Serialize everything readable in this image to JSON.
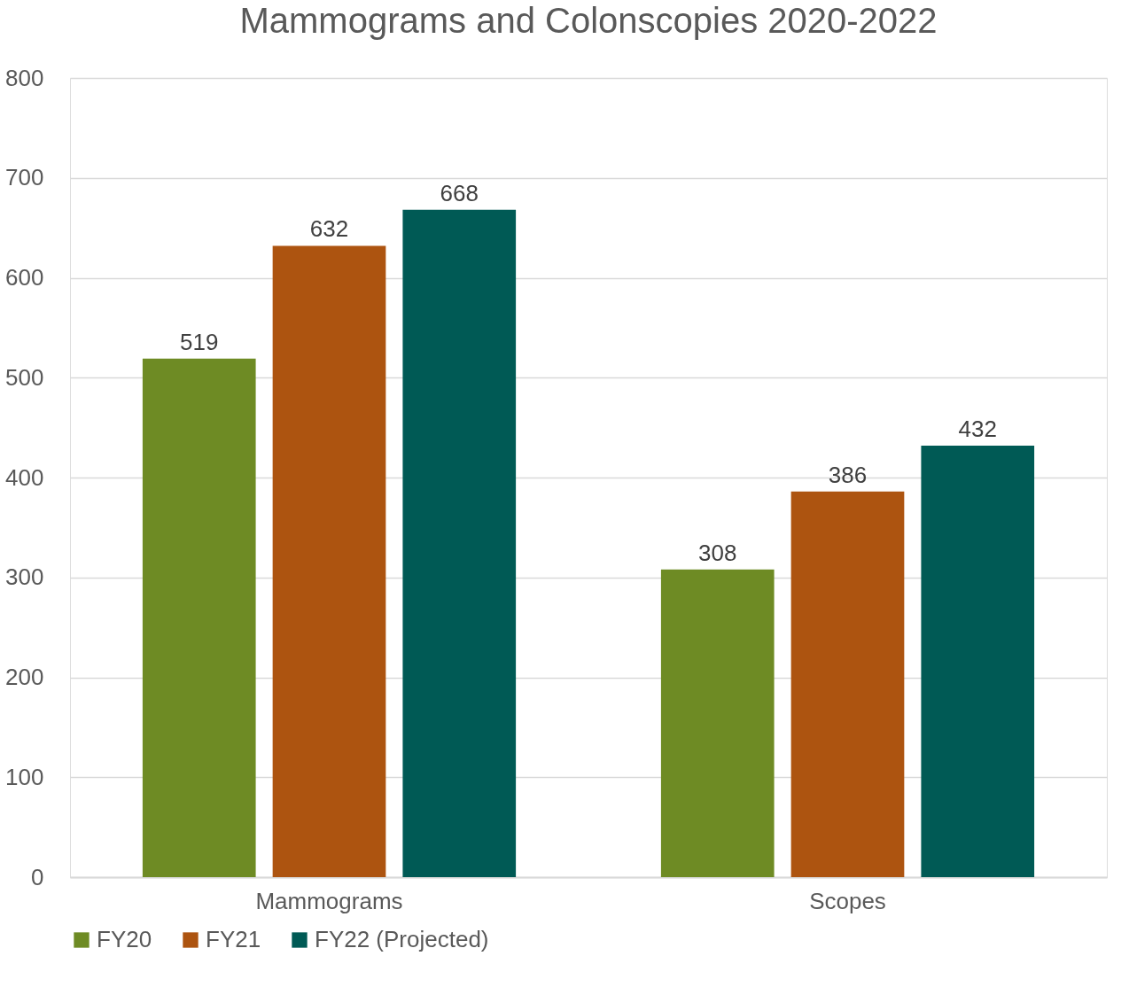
{
  "chart_data": {
    "type": "bar",
    "title": "Mammograms and Colonscopies 2020-2022",
    "categories": [
      "Mammograms",
      "Scopes"
    ],
    "series": [
      {
        "name": "FY20",
        "color": "#6e8b24",
        "values": [
          519,
          308
        ]
      },
      {
        "name": "FY21",
        "color": "#ad5410",
        "values": [
          632,
          386
        ]
      },
      {
        "name": "FY22 (Projected)",
        "color": "#005a55",
        "values": [
          668,
          432
        ]
      }
    ],
    "ylim": [
      0,
      800
    ],
    "yticks": [
      0,
      100,
      200,
      300,
      400,
      500,
      600,
      700,
      800
    ],
    "grid": "y",
    "legend": "bottom",
    "data_labels": true
  }
}
